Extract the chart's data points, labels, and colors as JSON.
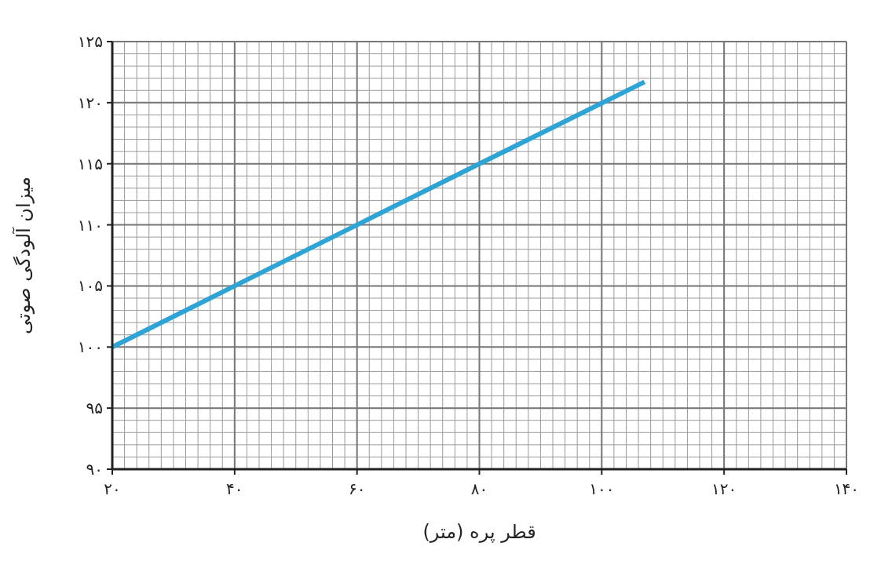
{
  "chart_data": {
    "type": "line",
    "xlabel": "قطر پره (متر)",
    "ylabel": "میزان آلودگی صوتی",
    "x": [
      20,
      40,
      60,
      80,
      107
    ],
    "series": [
      {
        "color": "#2ea3d5",
        "values": [
          100,
          105,
          110,
          115,
          121.7
        ]
      }
    ],
    "xlim": [
      20,
      140
    ],
    "ylim": [
      90,
      125
    ],
    "xticks": [
      {
        "value": 20,
        "label": "۲۰"
      },
      {
        "value": 40,
        "label": "۴۰"
      },
      {
        "value": 60,
        "label": "۶۰"
      },
      {
        "value": 80,
        "label": "۸۰"
      },
      {
        "value": 100,
        "label": "۱۰۰"
      },
      {
        "value": 120,
        "label": "۱۲۰"
      },
      {
        "value": 140,
        "label": "۱۴۰"
      }
    ],
    "yticks": [
      {
        "value": 90,
        "label": "۹۰"
      },
      {
        "value": 95,
        "label": "۹۵"
      },
      {
        "value": 100,
        "label": "۱۰۰"
      },
      {
        "value": 105,
        "label": "۱۰۵"
      },
      {
        "value": 110,
        "label": "۱۱۰"
      },
      {
        "value": 115,
        "label": "۱۱۵"
      },
      {
        "value": 120,
        "label": "۱۲۰"
      },
      {
        "value": 125,
        "label": "۱۲۵"
      }
    ],
    "grid": true,
    "marker": "none",
    "line_style": "solid"
  }
}
